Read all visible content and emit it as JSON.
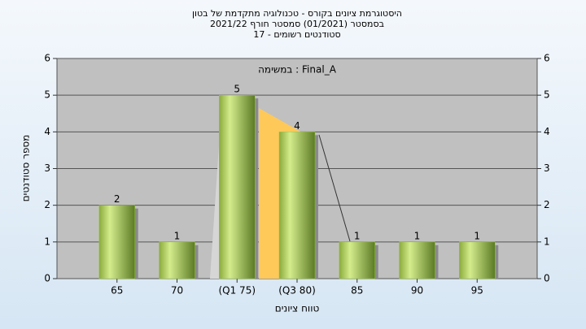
{
  "chart_data": {
    "type": "bar",
    "title": [
      "היסטוגרמת ציונים בקורס - טכנולוגיה מתקדמת של בטון",
      "בסמסטר  (01/2021)  סמסטר חורף 2021/22",
      "סטודנטים רשומים - 17"
    ],
    "annotation": "במשימה : Final_A",
    "x_label": "טווח ציונים",
    "y_label": "מספר סטודנטים",
    "categories": [
      "65",
      "70",
      "(Q1 75)",
      "(Q3 80)",
      "85",
      "90",
      "95"
    ],
    "values": [
      2,
      1,
      5,
      4,
      1,
      1,
      1
    ],
    "color": "#9cc24a",
    "ylim": [
      0,
      6
    ],
    "yticks": [
      0,
      1,
      2,
      3,
      4,
      5,
      6
    ],
    "grid": true
  }
}
